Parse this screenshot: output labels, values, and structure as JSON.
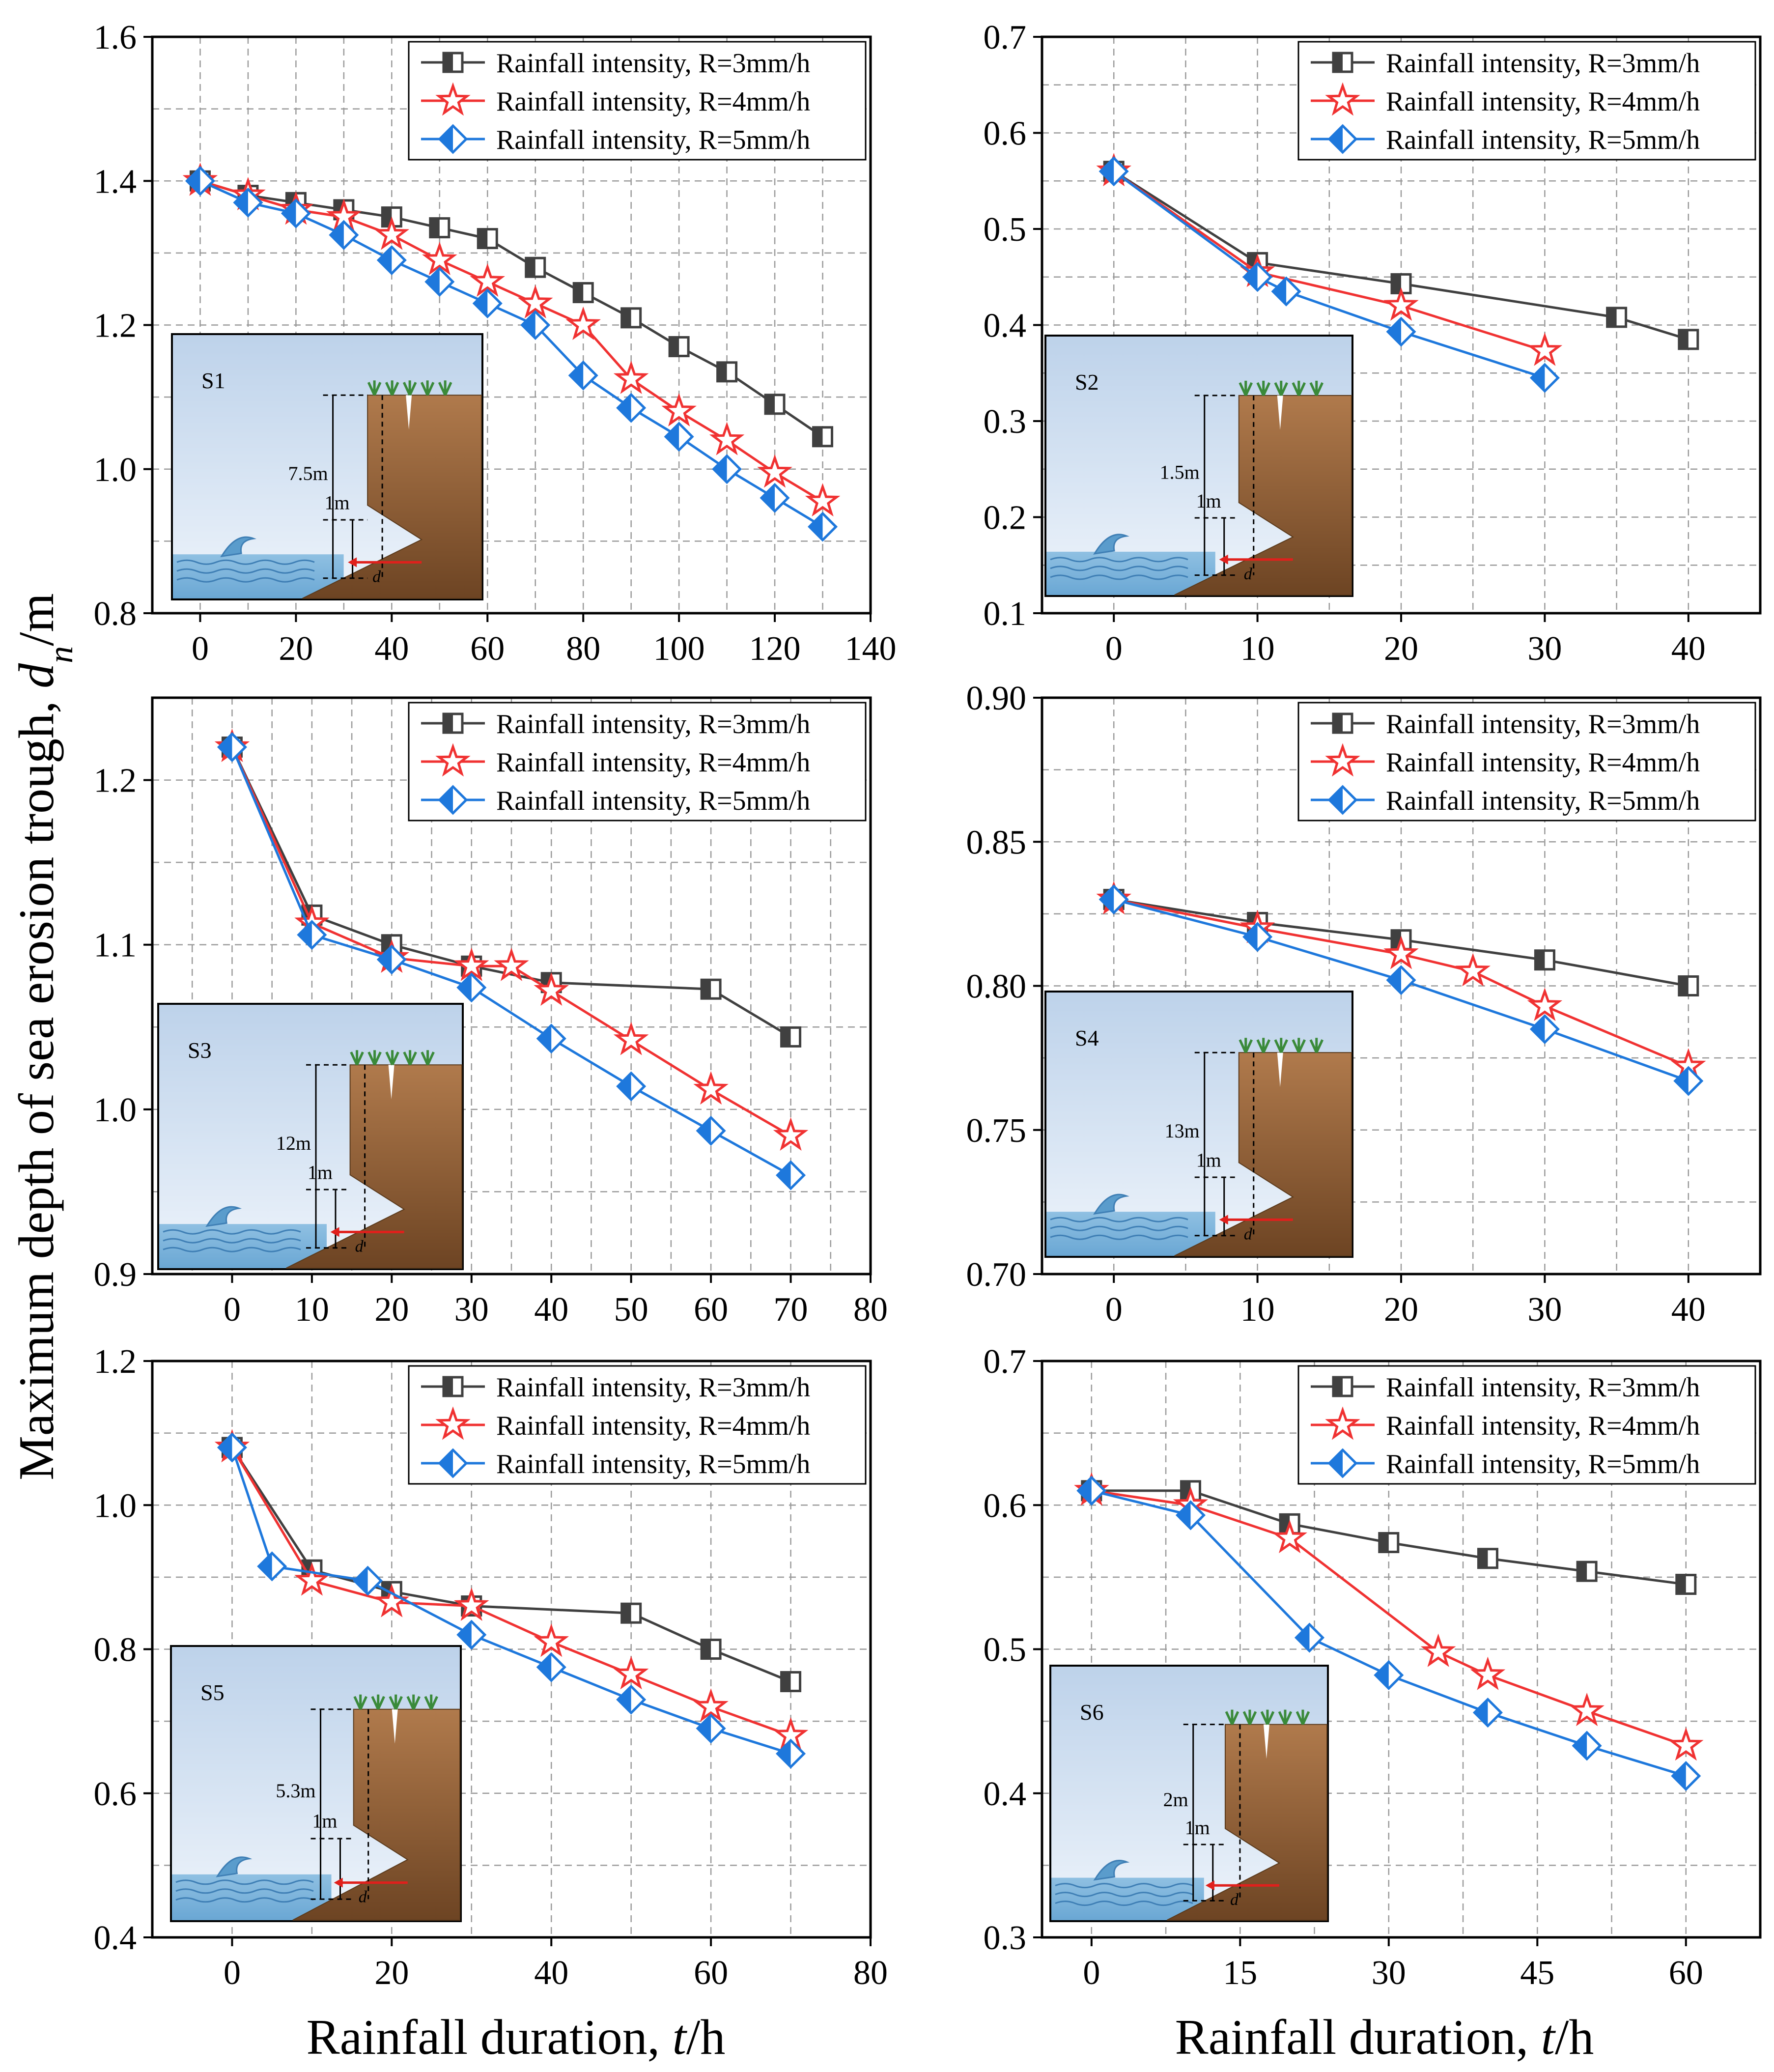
{
  "figure": {
    "ylabel": "Maximum depth of sea erosion trough, ",
    "ylabel_var": "d",
    "ylabel_sub": "n",
    "ylabel_unit": "/m",
    "xlabel_left": "Rainfall duration, ",
    "xlabel_right": "Rainfall duration, ",
    "xlabel_var": "t",
    "xlabel_unit": "/h",
    "colors": {
      "R3": "#404040",
      "R4": "#f03232",
      "R5": "#1e78dc"
    },
    "legend": [
      "Rainfall intensity, R=3mm/h",
      "Rainfall intensity, R=4mm/h",
      "Rainfall intensity, R=5mm/h"
    ]
  },
  "chart_data": [
    {
      "type": "line",
      "title": "S1",
      "height_label": "7.5m",
      "trough_label": "1m",
      "arrow_label": "d",
      "xlim": [
        -10,
        140
      ],
      "ylim": [
        0.8,
        1.6
      ],
      "xticks": [
        "0",
        "20",
        "40",
        "60",
        "80",
        "100",
        "120",
        "140"
      ],
      "yticks": [
        "0.8",
        "1.0",
        "1.2",
        "1.4",
        "1.6"
      ],
      "series": [
        {
          "name": "Rainfall intensity, R=3mm/h",
          "x": [
            0,
            10,
            20,
            30,
            40,
            50,
            60,
            70,
            80,
            90,
            100,
            110,
            120,
            130
          ],
          "y": [
            1.4,
            1.38,
            1.37,
            1.36,
            1.35,
            1.335,
            1.32,
            1.28,
            1.245,
            1.21,
            1.17,
            1.135,
            1.09,
            1.045
          ]
        },
        {
          "name": "Rainfall intensity, R=4mm/h",
          "x": [
            0,
            10,
            20,
            30,
            40,
            50,
            60,
            70,
            80,
            90,
            100,
            110,
            120,
            130
          ],
          "y": [
            1.4,
            1.38,
            1.36,
            1.35,
            1.325,
            1.29,
            1.26,
            1.23,
            1.2,
            1.125,
            1.08,
            1.04,
            0.995,
            0.955
          ]
        },
        {
          "name": "Rainfall intensity, R=5mm/h",
          "x": [
            0,
            10,
            20,
            30,
            40,
            50,
            60,
            70,
            80,
            90,
            100,
            110,
            120,
            130
          ],
          "y": [
            1.4,
            1.37,
            1.355,
            1.325,
            1.29,
            1.26,
            1.23,
            1.2,
            1.13,
            1.085,
            1.045,
            1.0,
            0.96,
            0.92
          ]
        }
      ]
    },
    {
      "type": "line",
      "title": "S2",
      "height_label": "1.5m",
      "trough_label": "1m",
      "arrow_label": "d",
      "xlim": [
        -5,
        45
      ],
      "ylim": [
        0.1,
        0.7
      ],
      "xticks": [
        "0",
        "10",
        "20",
        "30",
        "40"
      ],
      "yticks": [
        "0.1",
        "0.2",
        "0.3",
        "0.4",
        "0.5",
        "0.6",
        "0.7"
      ],
      "series": [
        {
          "name": "Rainfall intensity, R=3mm/h",
          "x": [
            0,
            10,
            20,
            35,
            40
          ],
          "y": [
            0.56,
            0.465,
            0.443,
            0.408,
            0.385
          ]
        },
        {
          "name": "Rainfall intensity, R=4mm/h",
          "x": [
            0,
            10,
            20,
            30
          ],
          "y": [
            0.56,
            0.455,
            0.42,
            0.373
          ]
        },
        {
          "name": "Rainfall intensity, R=5mm/h",
          "x": [
            0,
            10,
            12,
            20,
            30
          ],
          "y": [
            0.56,
            0.45,
            0.435,
            0.393,
            0.345
          ]
        }
      ]
    },
    {
      "type": "line",
      "title": "S3",
      "height_label": "12m",
      "trough_label": "1m",
      "arrow_label": "d",
      "xlim": [
        -10,
        80
      ],
      "ylim": [
        0.9,
        1.25
      ],
      "xticks": [
        "0",
        "10",
        "20",
        "30",
        "40",
        "50",
        "60",
        "70",
        "80"
      ],
      "yticks": [
        "0.9",
        "1.0",
        "1.1",
        "1.2"
      ],
      "series": [
        {
          "name": "Rainfall intensity, R=3mm/h",
          "x": [
            0,
            10,
            20,
            30,
            40,
            60,
            70
          ],
          "y": [
            1.22,
            1.118,
            1.1,
            1.087,
            1.077,
            1.073,
            1.044
          ]
        },
        {
          "name": "Rainfall intensity, R=4mm/h",
          "x": [
            0,
            10,
            20,
            30,
            35,
            40,
            50,
            60,
            70
          ],
          "y": [
            1.22,
            1.113,
            1.092,
            1.087,
            1.087,
            1.072,
            1.042,
            1.012,
            0.984
          ]
        },
        {
          "name": "Rainfall intensity, R=5mm/h",
          "x": [
            0,
            10,
            20,
            30,
            40,
            50,
            60,
            70
          ],
          "y": [
            1.22,
            1.106,
            1.091,
            1.074,
            1.043,
            1.014,
            0.987,
            0.96
          ]
        }
      ]
    },
    {
      "type": "line",
      "title": "S4",
      "height_label": "13m",
      "trough_label": "1m",
      "arrow_label": "d",
      "xlim": [
        -5,
        45
      ],
      "ylim": [
        0.7,
        0.9
      ],
      "xticks": [
        "0",
        "10",
        "20",
        "30",
        "40"
      ],
      "yticks": [
        "0.70",
        "0.75",
        "0.80",
        "0.85",
        "0.90"
      ],
      "series": [
        {
          "name": "Rainfall intensity, R=3mm/h",
          "x": [
            0,
            10,
            20,
            30,
            40
          ],
          "y": [
            0.83,
            0.822,
            0.816,
            0.809,
            0.8
          ]
        },
        {
          "name": "Rainfall intensity, R=4mm/h",
          "x": [
            0,
            10,
            20,
            25,
            30,
            40
          ],
          "y": [
            0.83,
            0.82,
            0.811,
            0.805,
            0.793,
            0.772
          ]
        },
        {
          "name": "Rainfall intensity, R=5mm/h",
          "x": [
            0,
            10,
            20,
            30,
            40
          ],
          "y": [
            0.83,
            0.817,
            0.802,
            0.785,
            0.767
          ]
        }
      ]
    },
    {
      "type": "line",
      "title": "S5",
      "height_label": "5.3m",
      "trough_label": "1m",
      "arrow_label": "d",
      "xlim": [
        -10,
        80
      ],
      "ylim": [
        0.4,
        1.2
      ],
      "xticks": [
        "0",
        "20",
        "40",
        "60",
        "80"
      ],
      "yticks": [
        "0.4",
        "0.6",
        "0.8",
        "1.0",
        "1.2"
      ],
      "series": [
        {
          "name": "Rainfall intensity, R=3mm/h",
          "x": [
            0,
            10,
            20,
            30,
            50,
            60,
            70
          ],
          "y": [
            1.08,
            0.91,
            0.88,
            0.86,
            0.85,
            0.8,
            0.755
          ]
        },
        {
          "name": "Rainfall intensity, R=4mm/h",
          "x": [
            0,
            10,
            20,
            30,
            40,
            50,
            60,
            70
          ],
          "y": [
            1.08,
            0.895,
            0.865,
            0.86,
            0.81,
            0.765,
            0.72,
            0.68
          ]
        },
        {
          "name": "Rainfall intensity, R=5mm/h",
          "x": [
            0,
            5,
            17,
            30,
            40,
            50,
            60,
            70
          ],
          "y": [
            1.08,
            0.915,
            0.895,
            0.82,
            0.775,
            0.73,
            0.69,
            0.655
          ]
        }
      ]
    },
    {
      "type": "line",
      "title": "S6",
      "height_label": "2m",
      "trough_label": "1m",
      "arrow_label": "d",
      "xlim": [
        -5,
        67.5
      ],
      "ylim": [
        0.3,
        0.7
      ],
      "xticks": [
        "0",
        "15",
        "30",
        "45",
        "60"
      ],
      "yticks": [
        "0.3",
        "0.4",
        "0.5",
        "0.6",
        "0.7"
      ],
      "series": [
        {
          "name": "Rainfall intensity, R=3mm/h",
          "x": [
            0,
            10,
            20,
            30,
            40,
            50,
            60
          ],
          "y": [
            0.61,
            0.61,
            0.587,
            0.574,
            0.563,
            0.554,
            0.545
          ]
        },
        {
          "name": "Rainfall intensity, R=4mm/h",
          "x": [
            0,
            10,
            20,
            35,
            40,
            50,
            60
          ],
          "y": [
            0.61,
            0.6,
            0.577,
            0.498,
            0.482,
            0.457,
            0.433
          ]
        },
        {
          "name": "Rainfall intensity, R=5mm/h",
          "x": [
            0,
            10,
            22,
            30,
            40,
            50,
            60
          ],
          "y": [
            0.61,
            0.593,
            0.508,
            0.482,
            0.456,
            0.433,
            0.412
          ]
        }
      ]
    }
  ]
}
